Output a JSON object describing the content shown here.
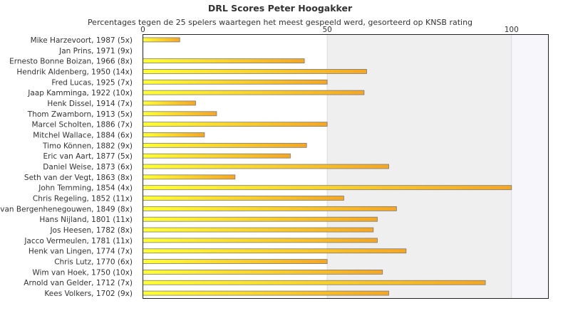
{
  "chart_data": {
    "type": "bar",
    "orientation": "horizontal",
    "title": "DRL Scores Peter Hoogakker",
    "subtitle": "Percentages tegen de 25 spelers waartegen het meest gespeeld werd, gesorteerd op KNSB rating",
    "xlim": [
      0,
      110
    ],
    "xticks": [
      0,
      50,
      100
    ],
    "grid": true,
    "colors": {
      "bar_start": "#ffff33",
      "bar_end": "#f5a623",
      "bar_border": "#7a7a7a",
      "band": "#efefef",
      "band_light": "#f7f7fb"
    },
    "categories": [
      "Mike Harzevoort, 1987 (5x)",
      "Jan Prins, 1971 (9x)",
      "Ernesto Bonne Boizan, 1966 (8x)",
      "Hendrik Aldenberg, 1950 (14x)",
      "Fred Lucas, 1925 (7x)",
      "Jaap Kamminga, 1922 (10x)",
      "Henk Dissel, 1914 (7x)",
      "Thom Zwamborn, 1913 (5x)",
      "Marcel Scholten, 1886 (7x)",
      "Mitchel Wallace, 1884 (6x)",
      "Timo Können, 1882 (9x)",
      "Eric van Aart, 1877 (5x)",
      "Daniel Weise, 1873 (6x)",
      "Seth van der Vegt, 1863 (8x)",
      "John Temming, 1854 (4x)",
      "Chris Regeling, 1852 (11x)",
      "van Bergenhenegouwen, 1849 (8x)",
      "Hans Nijland, 1801 (11x)",
      "Jos Heesen, 1782 (8x)",
      "Jacco Vermeulen, 1781 (11x)",
      "Henk van Lingen, 1774 (7x)",
      "Chris Lutz, 1770 (6x)",
      "Wim van Hoek, 1750 (10x)",
      "Arnold van Gelder, 1712 (7x)",
      "Kees Volkers, 1702 (9x)"
    ],
    "values": [
      10,
      0,
      43.8,
      60.7,
      50,
      60,
      14.3,
      20,
      50,
      16.7,
      44.4,
      40,
      66.7,
      25,
      100,
      54.5,
      68.8,
      63.6,
      62.5,
      63.6,
      71.4,
      50,
      65,
      92.9,
      66.7
    ]
  }
}
